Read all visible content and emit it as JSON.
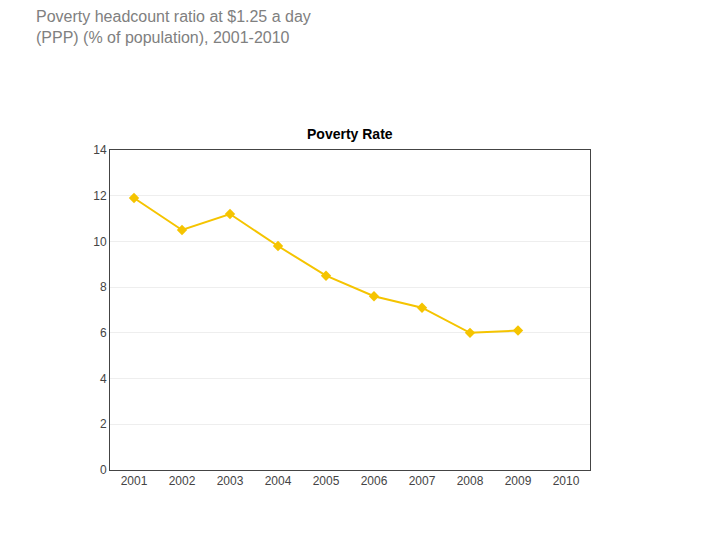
{
  "chart_data": {
    "type": "line",
    "title": [
      "Poverty headcount ratio at $1.25 a day",
      "(PPP) (% of population), 2001-2010"
    ],
    "subtitle": "Poverty Rate",
    "x": [
      2001,
      2002,
      2003,
      2004,
      2005,
      2006,
      2007,
      2008,
      2009,
      2010
    ],
    "values": [
      11.9,
      10.5,
      11.2,
      9.8,
      8.5,
      7.6,
      7.1,
      6.0,
      6.1,
      null
    ],
    "color": "#F5C400",
    "marker": "diamond",
    "line_style": "solid",
    "xlim": [
      2000.5,
      2010.5
    ],
    "xticks": [
      2001,
      2002,
      2003,
      2004,
      2005,
      2006,
      2007,
      2008,
      2009,
      2010
    ],
    "ylim": [
      0,
      14
    ],
    "yticks": [
      0,
      2,
      4,
      6,
      8,
      10,
      12,
      14
    ],
    "grid": "y"
  }
}
